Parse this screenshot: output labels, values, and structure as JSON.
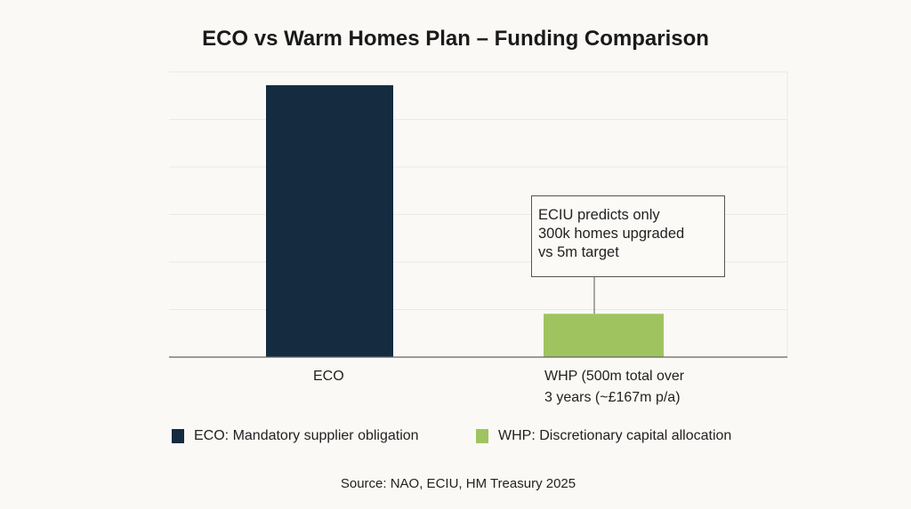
{
  "chart_data": {
    "type": "bar",
    "title": "ECO vs Warm Homes Plan – Funding Comparison",
    "categories": [
      "ECO",
      "WHP (500m total over 3 years (~£167m p/a)"
    ],
    "category_lines": [
      [
        "ECO"
      ],
      [
        "WHP (500m total over",
        "3 years (~£167m p/a)"
      ]
    ],
    "values": [
      1049,
      167
    ],
    "colors": [
      "#152b40",
      "#9fc45f"
    ],
    "ylim": [
      0,
      1100
    ],
    "grid": true,
    "gridlines": 6,
    "xlabel": "",
    "ylabel": "",
    "legend": {
      "placement": "bottom",
      "entries": [
        {
          "label": "ECO: Mandatory supplier obligation",
          "color": "#152b40"
        },
        {
          "label": "WHP: Discretionary capital allocation",
          "color": "#9fc45f"
        }
      ]
    },
    "annotation": {
      "lines": [
        "ECIU predicts only",
        "300k homes upgraded",
        "vs 5m target"
      ],
      "target": "WHP"
    },
    "source": "Source: NAO, ECIU, HM Treasury 2025"
  }
}
